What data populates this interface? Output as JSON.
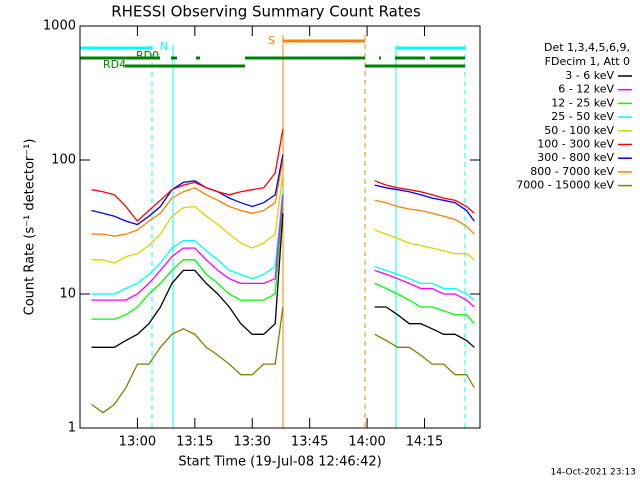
{
  "chart_data": {
    "type": "line",
    "title": "RHESSI Observing Summary Count Rates",
    "xlabel": "Start Time (19-Jul-08 12:46:42)",
    "ylabel": "Count Rate (s⁻¹ detector⁻¹)",
    "legend_header": [
      "Det 1,3,4,5,6,9,",
      "FDecim 1, Att 0"
    ],
    "footer": "14-Oct-2021 23:13",
    "annotations": [
      "N",
      "S",
      "RD0",
      "RD4"
    ],
    "log_y": true,
    "xlim": [
      765,
      869.5
    ],
    "xticks": [
      {
        "value": 780,
        "label": "13:00"
      },
      {
        "value": 795,
        "label": "13:15"
      },
      {
        "value": 810,
        "label": "13:30"
      },
      {
        "value": 825,
        "label": "13:45"
      },
      {
        "value": 840,
        "label": "14:00"
      },
      {
        "value": 855,
        "label": "14:15"
      }
    ],
    "ylim": [
      1,
      1000
    ],
    "yticks": [
      1,
      10,
      100,
      1000
    ],
    "x": [
      768,
      771,
      774,
      777,
      780,
      783,
      786,
      789,
      792,
      795,
      798,
      801,
      804,
      807,
      810,
      813,
      816,
      818,
      830,
      842,
      845,
      848,
      851,
      854,
      857,
      860,
      863,
      866,
      868
    ],
    "series": [
      {
        "name": "3 - 6 keV",
        "color": "#000000",
        "values": [
          4,
          4,
          4,
          4.5,
          5,
          6,
          8,
          12,
          15,
          15,
          12,
          10,
          8,
          6,
          5,
          5,
          6,
          40,
          null,
          8,
          8,
          7,
          6,
          6,
          5.5,
          5,
          5,
          4.5,
          4
        ]
      },
      {
        "name": "6 - 12 keV",
        "color": "#ff00ff",
        "values": [
          9,
          9,
          9,
          9,
          10,
          12,
          15,
          19,
          22,
          22,
          18,
          15,
          13,
          12,
          12,
          12,
          13,
          55,
          null,
          15,
          14,
          13,
          12,
          11,
          11,
          10,
          10,
          9,
          8
        ]
      },
      {
        "name": "12 - 25 keV",
        "color": "#00ff00",
        "values": [
          6.5,
          6.5,
          6.5,
          7,
          8,
          10,
          12,
          15,
          18,
          18,
          14,
          12,
          10,
          9,
          9,
          9,
          10,
          50,
          null,
          12,
          11,
          10,
          9,
          8,
          8,
          7.5,
          7,
          7,
          6
        ]
      },
      {
        "name": "25 - 50 keV",
        "color": "#00ffff",
        "values": [
          10,
          10,
          10,
          11,
          12,
          14,
          17,
          22,
          25,
          25,
          21,
          18,
          15,
          14,
          13,
          14,
          16,
          60,
          null,
          16,
          15,
          14,
          13,
          12,
          12,
          11,
          11,
          10,
          9
        ]
      },
      {
        "name": "50 - 100 keV",
        "color": "#e0d000",
        "values": [
          18,
          18,
          17,
          19,
          20,
          23,
          28,
          38,
          44,
          45,
          38,
          33,
          28,
          24,
          22,
          24,
          28,
          80,
          null,
          30,
          28,
          26,
          24,
          23,
          22,
          21,
          20,
          20,
          18
        ]
      },
      {
        "name": "100 - 300 keV",
        "color": "#ff0000",
        "values": [
          60,
          58,
          55,
          45,
          35,
          42,
          50,
          60,
          65,
          68,
          62,
          58,
          55,
          58,
          60,
          62,
          80,
          170,
          null,
          70,
          65,
          62,
          60,
          58,
          55,
          52,
          50,
          45,
          40
        ]
      },
      {
        "name": "300 - 800 keV",
        "color": "#0000ff",
        "values": [
          42,
          40,
          38,
          35,
          33,
          38,
          45,
          60,
          68,
          70,
          62,
          58,
          52,
          48,
          45,
          48,
          55,
          110,
          null,
          65,
          62,
          60,
          58,
          55,
          52,
          50,
          48,
          42,
          35
        ]
      },
      {
        "name": "800 - 7000 keV",
        "color": "#ff8000",
        "values": [
          28,
          28,
          27,
          28,
          30,
          35,
          40,
          52,
          58,
          62,
          55,
          50,
          45,
          42,
          40,
          42,
          48,
          100,
          null,
          50,
          48,
          45,
          43,
          42,
          40,
          38,
          36,
          32,
          28
        ]
      },
      {
        "name": "7000 - 15000 keV",
        "color": "#808000",
        "values": [
          1.5,
          1.3,
          1.5,
          2,
          3,
          3,
          4,
          5,
          5.5,
          5,
          4,
          3.5,
          3,
          2.5,
          2.5,
          3,
          3,
          8,
          null,
          5,
          4.5,
          4,
          4,
          3.5,
          3,
          3,
          2.5,
          2.5,
          2
        ]
      }
    ]
  }
}
